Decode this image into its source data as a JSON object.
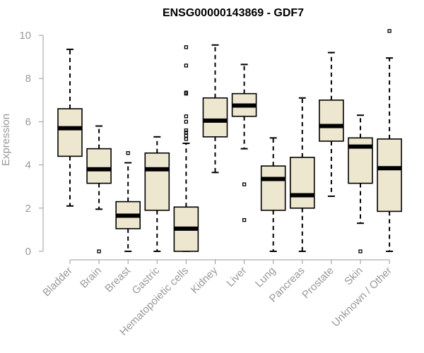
{
  "chart_data": {
    "type": "boxplot",
    "title": "ENSG00000143869 - GDF7",
    "ylabel": "Expression",
    "xlabel": "",
    "ylim": [
      0,
      10
    ],
    "yticks": [
      0,
      2,
      4,
      6,
      8,
      10
    ],
    "categories": [
      "Bladder",
      "Brain",
      "Breast",
      "Gastric",
      "Hematopoietic cells",
      "Kidney",
      "Liver",
      "Lung",
      "Pancreas",
      "Prostate",
      "Skin",
      "Unknown / Other"
    ],
    "boxes": [
      {
        "category": "Bladder",
        "whisker_low": 2.1,
        "q1": 4.4,
        "median": 5.7,
        "q3": 6.6,
        "whisker_high": 9.35,
        "outliers": []
      },
      {
        "category": "Brain",
        "whisker_low": 1.95,
        "q1": 3.15,
        "median": 3.8,
        "q3": 4.75,
        "whisker_high": 5.8,
        "outliers": [
          0.0
        ]
      },
      {
        "category": "Breast",
        "whisker_low": 0.0,
        "q1": 1.05,
        "median": 1.65,
        "q3": 2.3,
        "whisker_high": 4.1,
        "outliers": [
          4.55
        ]
      },
      {
        "category": "Gastric",
        "whisker_low": 0.0,
        "q1": 1.9,
        "median": 3.8,
        "q3": 4.55,
        "whisker_high": 5.3,
        "outliers": []
      },
      {
        "category": "Hematopoietic cells",
        "whisker_low": 0.0,
        "q1": 0.0,
        "median": 1.05,
        "q3": 2.05,
        "whisker_high": 5.0,
        "outliers": [
          5.2,
          5.35,
          5.5,
          5.6,
          6.0,
          6.25,
          7.3,
          7.35,
          8.6,
          9.45
        ]
      },
      {
        "category": "Kidney",
        "whisker_low": 3.65,
        "q1": 5.3,
        "median": 6.05,
        "q3": 7.1,
        "whisker_high": 9.55,
        "outliers": []
      },
      {
        "category": "Liver",
        "whisker_low": 4.75,
        "q1": 6.25,
        "median": 6.75,
        "q3": 7.3,
        "whisker_high": 8.65,
        "outliers": [
          3.1,
          1.45
        ]
      },
      {
        "category": "Lung",
        "whisker_low": 0.0,
        "q1": 1.9,
        "median": 3.35,
        "q3": 3.95,
        "whisker_high": 5.25,
        "outliers": []
      },
      {
        "category": "Pancreas",
        "whisker_low": 0.0,
        "q1": 2.0,
        "median": 2.6,
        "q3": 4.35,
        "whisker_high": 7.1,
        "outliers": []
      },
      {
        "category": "Prostate",
        "whisker_low": 2.55,
        "q1": 5.1,
        "median": 5.8,
        "q3": 7.0,
        "whisker_high": 9.2,
        "outliers": []
      },
      {
        "category": "Skin",
        "whisker_low": 1.3,
        "q1": 3.15,
        "median": 4.85,
        "q3": 5.25,
        "whisker_high": 6.3,
        "outliers": [
          0.0
        ]
      },
      {
        "category": "Unknown / Other",
        "whisker_low": 0.0,
        "q1": 1.85,
        "median": 3.85,
        "q3": 5.2,
        "whisker_high": 8.95,
        "outliers": [
          10.2
        ]
      }
    ],
    "box_fill": "#ede7cf",
    "axis_color": "#999999",
    "grid": false,
    "legend": "none"
  }
}
